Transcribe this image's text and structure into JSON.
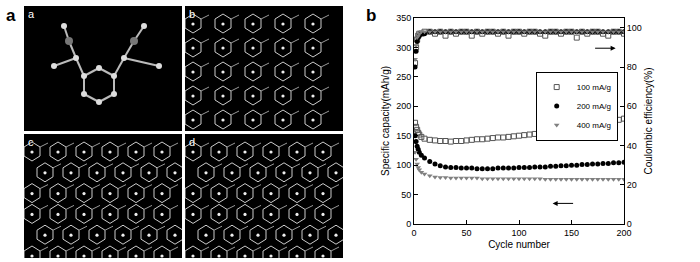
{
  "panel_labels": [
    "a",
    "b"
  ],
  "image_panel": {
    "subpanel_labels": [
      "a",
      "b",
      "c",
      "d"
    ]
  },
  "chart_data": {
    "type": "scatter",
    "marker": "markers",
    "xlabel": "Cycle number",
    "ylabel": "Specific capacity(mAh/g)",
    "y2label": "Coulombic efficiency(%)",
    "x": [
      1,
      2,
      3,
      4,
      5,
      7,
      10,
      15,
      20,
      25,
      30,
      35,
      40,
      45,
      50,
      55,
      60,
      65,
      70,
      75,
      80,
      85,
      90,
      95,
      100,
      105,
      110,
      115,
      120,
      125,
      130,
      135,
      140,
      145,
      150,
      155,
      160,
      165,
      170,
      175,
      180,
      185,
      190,
      195,
      200
    ],
    "xlim": [
      0,
      200
    ],
    "xticks": [
      0,
      50,
      100,
      150,
      200
    ],
    "ylim": [
      0,
      350
    ],
    "yticks": [
      0,
      50,
      100,
      150,
      200,
      250,
      300,
      350
    ],
    "y2lim": [
      0,
      105
    ],
    "y2ticks": [
      0,
      20,
      40,
      60,
      80,
      100
    ],
    "legend": "upper right",
    "grid": false,
    "series": [
      {
        "name": "100 mA/g",
        "color": "#555555",
        "marker": "square-open",
        "values": [
          172,
          165,
          160,
          155,
          152,
          148,
          145,
          143,
          142,
          141,
          141,
          140,
          141,
          141,
          142,
          143,
          144,
          144,
          145,
          146,
          147,
          147,
          148,
          149,
          150,
          151,
          152,
          153,
          155,
          156,
          157,
          158,
          160,
          161,
          163,
          164,
          166,
          167,
          169,
          170,
          172,
          174,
          175,
          177,
          179
        ]
      },
      {
        "name": "200 mA/g",
        "color": "#000000",
        "marker": "circle",
        "values": [
          150,
          140,
          132,
          127,
          122,
          117,
          112,
          106,
          102,
          99,
          97,
          96,
          96,
          95,
          95,
          95,
          94,
          94,
          94,
          94,
          95,
          95,
          95,
          95,
          96,
          96,
          96,
          97,
          97,
          97,
          98,
          98,
          99,
          99,
          100,
          100,
          101,
          101,
          102,
          102,
          103,
          103,
          104,
          104,
          105
        ]
      },
      {
        "name": "400 mA/g",
        "color": "#808080",
        "marker": "triangle-down",
        "values": [
          122,
          110,
          102,
          96,
          92,
          88,
          85,
          82,
          80,
          79,
          79,
          78,
          78,
          78,
          78,
          78,
          78,
          77,
          77,
          77,
          77,
          77,
          77,
          77,
          77,
          77,
          77,
          77,
          77,
          76,
          76,
          76,
          76,
          76,
          76,
          76,
          76,
          76,
          76,
          76,
          76,
          76,
          76,
          76,
          76
        ]
      },
      {
        "name": "100 mA/g",
        "color": "#555555",
        "marker": "square-open",
        "axis": "y2",
        "values": [
          82,
          90,
          94,
          96,
          97,
          97,
          98,
          98,
          97,
          98,
          96,
          98,
          97,
          98,
          98,
          96,
          98,
          97,
          98,
          98,
          97,
          98,
          96,
          98,
          98,
          97,
          98,
          98,
          97,
          96,
          98,
          98,
          97,
          98,
          98,
          95,
          98,
          97,
          98,
          98,
          97,
          96,
          98,
          98,
          97
        ]
      },
      {
        "name": "200 mA/g",
        "color": "#000000",
        "marker": "circle",
        "axis": "y2",
        "values": [
          80,
          88,
          93,
          95,
          96,
          97,
          97,
          98,
          98,
          98,
          98,
          98,
          98,
          98,
          98,
          98,
          98,
          98,
          98,
          98,
          98,
          98,
          98,
          98,
          98,
          98,
          98,
          98,
          98,
          98,
          98,
          98,
          98,
          98,
          98,
          98,
          98,
          98,
          98,
          98,
          98,
          98,
          98,
          98,
          98
        ]
      },
      {
        "name": "400 mA/g",
        "color": "#808080",
        "marker": "triangle-down",
        "axis": "y2",
        "values": [
          84,
          91,
          95,
          96,
          97,
          98,
          98,
          98,
          98,
          98,
          98,
          98,
          98,
          98,
          98,
          98,
          98,
          98,
          98,
          98,
          98,
          98,
          98,
          98,
          98,
          98,
          98,
          98,
          98,
          98,
          98,
          98,
          98,
          98,
          98,
          98,
          98,
          98,
          98,
          98,
          98,
          98,
          98,
          98,
          98
        ]
      }
    ]
  }
}
